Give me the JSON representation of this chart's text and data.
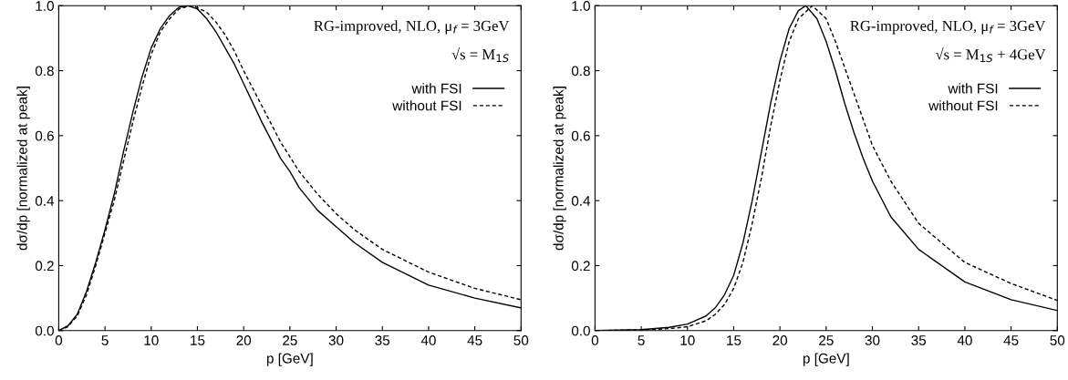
{
  "chart_data": [
    {
      "type": "line",
      "xlabel": "p [GeV]",
      "ylabel": "dσ/dp [normalized at peak]",
      "annotations": [
        "RG-improved, NLO, μ$_{f}$ = 3GeV",
        "√s = M$_{1S}$"
      ],
      "xlim": [
        0,
        50
      ],
      "ylim": [
        0,
        1
      ],
      "xticks": [
        0,
        5,
        10,
        15,
        20,
        25,
        30,
        35,
        40,
        45,
        50
      ],
      "yticks": [
        {
          "value": 0,
          "label": "0.0"
        },
        {
          "value": 0.2,
          "label": "0.2"
        },
        {
          "value": 0.4,
          "label": "0.4"
        },
        {
          "value": 0.6,
          "label": "0.6"
        },
        {
          "value": 0.8,
          "label": "0.8"
        },
        {
          "value": 1,
          "label": "1.0"
        }
      ],
      "legend": "top right",
      "grid": false,
      "series": [
        {
          "name": "with FSI",
          "color": "#000000",
          "line_style": "solid",
          "x": [
            0,
            1,
            2,
            3,
            4,
            5,
            6,
            7,
            8,
            9,
            10,
            11,
            12,
            13,
            14,
            15,
            16,
            17,
            18,
            19,
            20,
            22,
            24,
            25,
            26,
            28,
            30,
            32,
            35,
            40,
            45,
            50
          ],
          "values": [
            0,
            0.015,
            0.05,
            0.12,
            0.21,
            0.31,
            0.42,
            0.55,
            0.67,
            0.78,
            0.87,
            0.93,
            0.97,
            0.995,
            1.0,
            0.99,
            0.96,
            0.92,
            0.87,
            0.82,
            0.76,
            0.64,
            0.53,
            0.49,
            0.44,
            0.37,
            0.32,
            0.27,
            0.21,
            0.14,
            0.1,
            0.07
          ]
        },
        {
          "name": "without FSI",
          "color": "#000000",
          "line_style": "dashed",
          "x": [
            0,
            1,
            2,
            3,
            4,
            5,
            6,
            7,
            8,
            9,
            10,
            11,
            12,
            13,
            14,
            14.5,
            16,
            17,
            18,
            19,
            20,
            22,
            24,
            26,
            28,
            30,
            32,
            35,
            40,
            45,
            50
          ],
          "values": [
            0,
            0.012,
            0.045,
            0.11,
            0.2,
            0.3,
            0.4,
            0.52,
            0.64,
            0.75,
            0.85,
            0.92,
            0.96,
            0.99,
            0.998,
            1.0,
            0.98,
            0.95,
            0.91,
            0.86,
            0.8,
            0.69,
            0.58,
            0.49,
            0.42,
            0.36,
            0.31,
            0.25,
            0.18,
            0.13,
            0.095
          ]
        }
      ]
    },
    {
      "type": "line",
      "xlabel": "p [GeV]",
      "ylabel": "dσ/dp [normalized at peak]",
      "annotations": [
        "RG-improved, NLO, μ$_{f}$ = 3GeV",
        "√s = M$_{1S}$ + 4GeV"
      ],
      "xlim": [
        0,
        50
      ],
      "ylim": [
        0,
        1
      ],
      "xticks": [
        0,
        5,
        10,
        15,
        20,
        25,
        30,
        35,
        40,
        45,
        50
      ],
      "yticks": [
        {
          "value": 0,
          "label": "0.0"
        },
        {
          "value": 0.2,
          "label": "0.2"
        },
        {
          "value": 0.4,
          "label": "0.4"
        },
        {
          "value": 0.6,
          "label": "0.6"
        },
        {
          "value": 0.8,
          "label": "0.8"
        },
        {
          "value": 1,
          "label": "1.0"
        }
      ],
      "legend": "top right",
      "grid": false,
      "series": [
        {
          "name": "with FSI",
          "color": "#000000",
          "line_style": "solid",
          "x": [
            0,
            5,
            8,
            10,
            12,
            13,
            14,
            15,
            16,
            17,
            18,
            19,
            20,
            21,
            22,
            22.8,
            24,
            25,
            26,
            27,
            28,
            29,
            30,
            32,
            35,
            40,
            45,
            50
          ],
          "values": [
            0,
            0.003,
            0.01,
            0.02,
            0.045,
            0.07,
            0.11,
            0.17,
            0.27,
            0.4,
            0.55,
            0.7,
            0.83,
            0.93,
            0.985,
            1.0,
            0.96,
            0.89,
            0.8,
            0.7,
            0.61,
            0.53,
            0.46,
            0.35,
            0.25,
            0.15,
            0.095,
            0.062
          ]
        },
        {
          "name": "without FSI",
          "color": "#000000",
          "line_style": "dashed",
          "x": [
            0,
            5,
            8,
            10,
            12,
            13,
            14,
            15,
            16,
            17,
            18,
            19,
            20,
            21,
            22,
            23.5,
            25,
            26,
            27,
            28,
            29,
            30,
            32,
            35,
            40,
            45,
            50
          ],
          "values": [
            0,
            0.002,
            0.006,
            0.012,
            0.03,
            0.05,
            0.08,
            0.13,
            0.21,
            0.33,
            0.47,
            0.63,
            0.77,
            0.89,
            0.96,
            1.0,
            0.96,
            0.89,
            0.81,
            0.73,
            0.65,
            0.57,
            0.46,
            0.33,
            0.21,
            0.145,
            0.093
          ]
        }
      ]
    }
  ]
}
